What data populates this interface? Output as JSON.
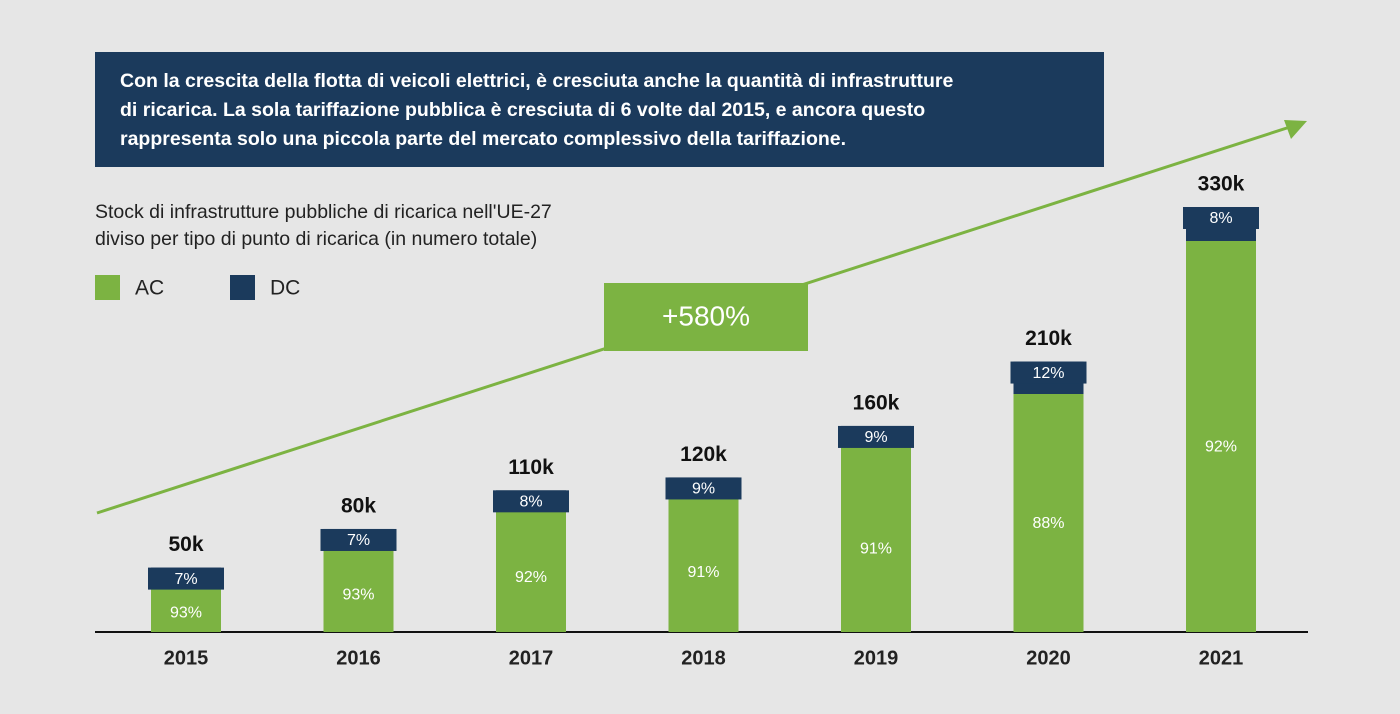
{
  "chart_data": {
    "type": "bar",
    "stacked": true,
    "description": [
      "Con la crescita della flotta di veicoli elettrici, è cresciuta anche la quantità di infrastrutture",
      "di ricarica. La sola tariffazione pubblica è cresciuta di 6 volte dal 2015, e ancora questo",
      "rappresenta solo una piccola parte del mercato complessivo della tariffazione."
    ],
    "title": "Stock di infrastrutture pubbliche di ricarica nell'UE-27",
    "subtitle": "diviso per tipo di punto di ricarica (in numero totale)",
    "annotation": "+580%",
    "categories": [
      "2015",
      "2016",
      "2017",
      "2018",
      "2019",
      "2020",
      "2021"
    ],
    "totals": {
      "values": [
        50000,
        80000,
        110000,
        120000,
        160000,
        210000,
        330000
      ],
      "value_labels": [
        "50k",
        "80k",
        "110k",
        "120k",
        "160k",
        "210k",
        "330k"
      ]
    },
    "series": [
      {
        "name": "AC",
        "color": "#7cb342",
        "values": [
          93,
          93,
          92,
          91,
          91,
          88,
          92
        ],
        "value_labels": [
          "93%",
          "93%",
          "92%",
          "91%",
          "91%",
          "88%",
          "92%"
        ]
      },
      {
        "name": "DC",
        "color": "#1b3a5c",
        "values": [
          7,
          7,
          8,
          9,
          9,
          12,
          8
        ],
        "value_labels": [
          "7%",
          "7%",
          "8%",
          "9%",
          "9%",
          "12%",
          "8%"
        ]
      }
    ]
  }
}
